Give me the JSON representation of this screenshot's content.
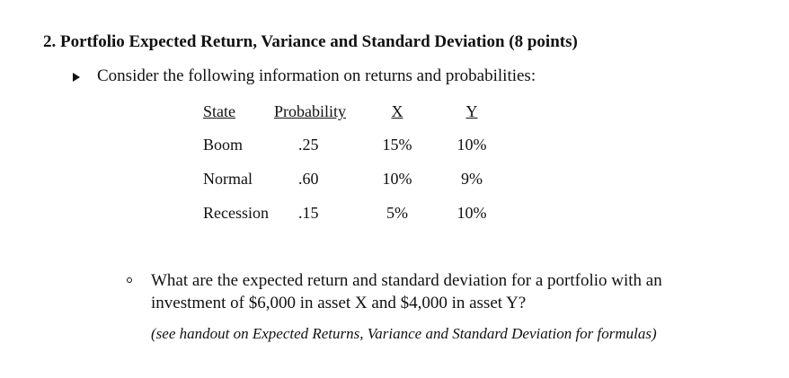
{
  "heading": "2. Portfolio Expected Return, Variance and Standard Deviation (8 points)",
  "intro": "Consider the following information on returns and probabilities:",
  "table": {
    "header": [
      "State",
      "Probability",
      "X",
      "Y"
    ],
    "rows": [
      [
        "Boom",
        ".25",
        "15%",
        "10%"
      ],
      [
        "Normal",
        ".60",
        "10%",
        "9%"
      ],
      [
        "Recession",
        ".15",
        "5%",
        "10%"
      ]
    ]
  },
  "question": "What are the expected return and standard deviation for a portfolio with an investment of $6,000 in asset X and $4,000 in asset Y?",
  "note": "(see handout on Expected Returns, Variance and Standard Deviation for formulas)"
}
